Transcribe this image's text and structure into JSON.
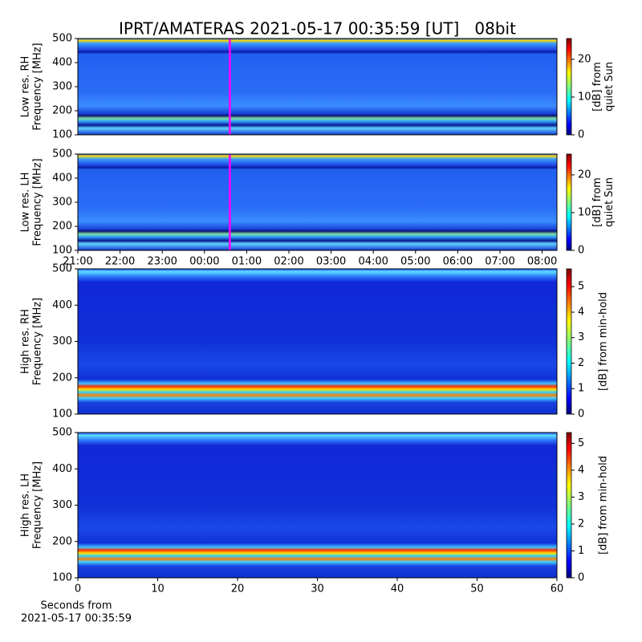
{
  "chart_data": [
    {
      "type": "heatmap",
      "title": "IPRT/AMATERAS 2021-05-17 00:35:59 [UT]   08bit",
      "ylabel": [
        "Low res. RH",
        "Frequency [MHz]"
      ],
      "ylim": [
        100,
        500
      ],
      "yticks": [
        100,
        200,
        300,
        400,
        500
      ],
      "xlim": [
        21,
        32.35
      ],
      "cursor": 24.6,
      "cursor_color": "#ff00ff",
      "colormap": "jet",
      "clim": [
        0,
        25.5
      ],
      "cticks": [
        0,
        10,
        20
      ],
      "clabel": [
        "[dB] from",
        "quiet Sun"
      ]
    },
    {
      "type": "heatmap",
      "ylabel": [
        "Low res. LH",
        "Frequency [MHz]"
      ],
      "ylim": [
        100,
        500
      ],
      "yticks": [
        100,
        200,
        300,
        400,
        500
      ],
      "xlim": [
        21,
        32.35
      ],
      "xticks": [
        {
          "value": 21,
          "label": "21:00"
        },
        {
          "value": 22,
          "label": "22:00"
        },
        {
          "value": 23,
          "label": "23:00"
        },
        {
          "value": 24,
          "label": "00:00"
        },
        {
          "value": 25,
          "label": "01:00"
        },
        {
          "value": 26,
          "label": "02:00"
        },
        {
          "value": 27,
          "label": "03:00"
        },
        {
          "value": 28,
          "label": "04:00"
        },
        {
          "value": 29,
          "label": "05:00"
        },
        {
          "value": 30,
          "label": "06:00"
        },
        {
          "value": 31,
          "label": "07:00"
        },
        {
          "value": 32,
          "label": "08:00"
        }
      ],
      "cursor": 24.6,
      "cursor_color": "#ff00ff",
      "colormap": "jet",
      "clim": [
        0,
        25.5
      ],
      "cticks": [
        0,
        10,
        20
      ],
      "clabel": [
        "[dB] from",
        "quiet Sun"
      ]
    },
    {
      "type": "heatmap",
      "ylabel": [
        "High res. RH",
        "Frequency [MHz]"
      ],
      "ylim": [
        100,
        500
      ],
      "yticks": [
        100,
        200,
        300,
        400,
        500
      ],
      "colormap": "jet",
      "clim": [
        0,
        5.7
      ],
      "cticks": [
        0,
        1,
        2,
        3,
        4,
        5
      ],
      "clabel": [
        "[dB] from min-hold"
      ]
    },
    {
      "type": "heatmap",
      "ylabel": [
        "High res. LH",
        "Frequency [MHz]"
      ],
      "ylim": [
        100,
        500
      ],
      "yticks": [
        100,
        200,
        300,
        400,
        500
      ],
      "xlim": [
        0,
        60
      ],
      "xticks": [
        0,
        10,
        20,
        30,
        40,
        50,
        60
      ],
      "xlabel": [
        "Seconds from",
        "2021-05-17 00:35:59"
      ],
      "colormap": "jet",
      "clim": [
        0,
        5.4
      ],
      "cticks": [
        0,
        1,
        2,
        3,
        4,
        5
      ],
      "clabel": [
        "[dB] from min-hold"
      ]
    }
  ]
}
